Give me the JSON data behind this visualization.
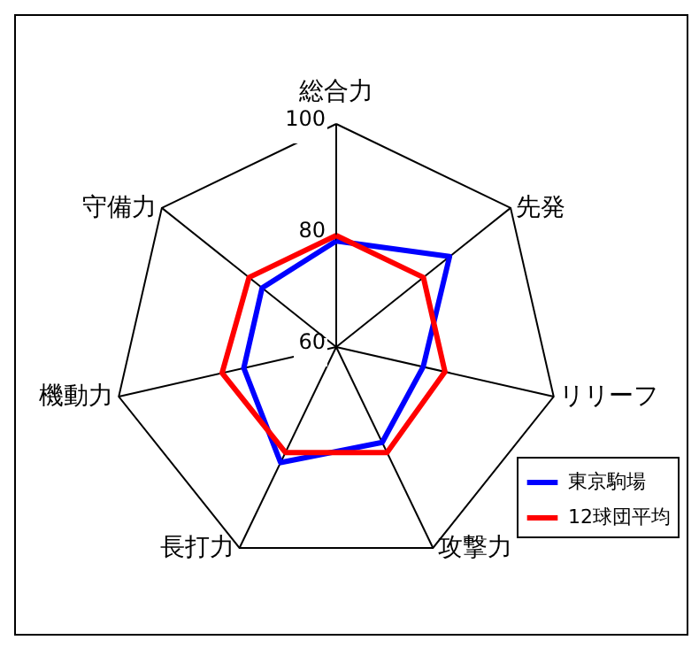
{
  "chart_data": {
    "type": "radar",
    "categories": [
      "総合力",
      "先発",
      "リリーフ",
      "攻撃力",
      "長打力",
      "機動力",
      "守備力"
    ],
    "ylim": [
      60,
      100
    ],
    "yticks": [
      60,
      80,
      100
    ],
    "grid": true,
    "legend": "bottom right",
    "series": [
      {
        "name": "東京駒場",
        "color": "#0000ff",
        "values": [
          79,
          86,
          76,
          79,
          83,
          77,
          77
        ]
      },
      {
        "name": "12球団平均",
        "color": "#ff0000",
        "values": [
          80,
          80,
          80,
          81,
          81,
          81,
          80
        ]
      }
    ]
  }
}
